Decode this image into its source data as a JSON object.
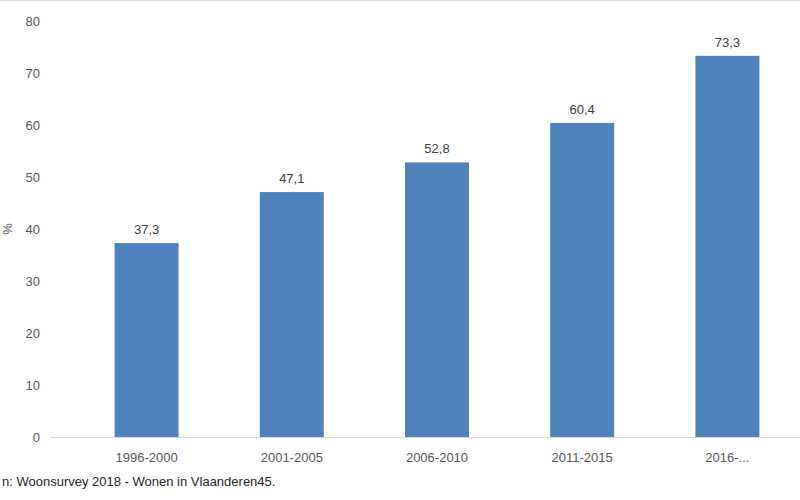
{
  "chart_data": {
    "type": "bar",
    "y_label": "%",
    "categories": [
      "1996-2000",
      "2001-2005",
      "2006-2010",
      "2011-2015",
      "2016-..."
    ],
    "values": [
      37.3,
      47.1,
      52.8,
      60.4,
      73.3
    ],
    "value_labels": [
      "37,3",
      "47,1",
      "52,8",
      "60,4",
      "73,3"
    ],
    "color": "#4f81bd",
    "ylim": [
      0,
      80
    ],
    "yticks": [
      0,
      10,
      20,
      30,
      40,
      50,
      60,
      70,
      80
    ],
    "grid": false,
    "data_labels": true,
    "annotations": [
      "n: Woonsurvey 2018 - Wonen in Vlaanderen45."
    ]
  }
}
